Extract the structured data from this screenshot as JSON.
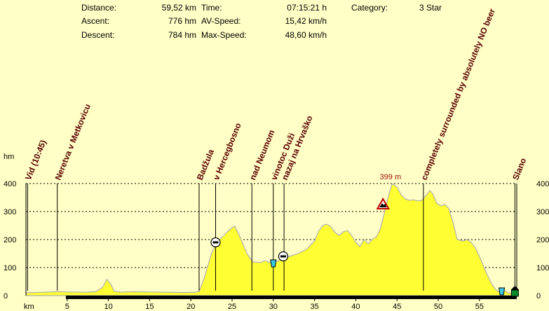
{
  "stats": {
    "distance_label": "Distance:",
    "distance_value": "59,52 km",
    "ascent_label": "Ascent:",
    "ascent_value": "776 hm",
    "descent_label": "Descent:",
    "descent_value": "784 hm",
    "time_label": "Time:",
    "time_value": "07:15:21 h",
    "avspeed_label": "AV-Speed:",
    "avspeed_value": "15,42 km/h",
    "maxspeed_label": "Max-Speed:",
    "maxspeed_value": "48,60 km/h",
    "category_label": "Category:",
    "category_value": "3 Star"
  },
  "colors": {
    "background": "#ffffc6",
    "fill": "#ffff33",
    "outline": "#b0b0b0",
    "label": "#5a0000",
    "peak_label": "#a01010"
  },
  "chart_data": {
    "type": "area",
    "xlabel": "km",
    "ylabel": "hm",
    "xlim": [
      0,
      59.52
    ],
    "ylim": [
      0,
      400
    ],
    "xticks": [
      5,
      10,
      15,
      20,
      25,
      30,
      35,
      40,
      45,
      50,
      55
    ],
    "yticks": [
      0,
      100,
      200,
      300,
      400
    ],
    "grid": true,
    "peak_label": "399 m",
    "peak_x": 44.2,
    "profile": [
      [
        0,
        10
      ],
      [
        2,
        12
      ],
      [
        4,
        14
      ],
      [
        5,
        13
      ],
      [
        7,
        12
      ],
      [
        8.5,
        14
      ],
      [
        9.3,
        30
      ],
      [
        9.8,
        58
      ],
      [
        10.3,
        40
      ],
      [
        10.7,
        16
      ],
      [
        11.5,
        12
      ],
      [
        13,
        14
      ],
      [
        15,
        13
      ],
      [
        17,
        12
      ],
      [
        19,
        11
      ],
      [
        20.5,
        12
      ],
      [
        21,
        15
      ],
      [
        21.6,
        60
      ],
      [
        22,
        100
      ],
      [
        22.5,
        150
      ],
      [
        23,
        180
      ],
      [
        23.5,
        200
      ],
      [
        24,
        215
      ],
      [
        24.5,
        230
      ],
      [
        25,
        242
      ],
      [
        25.3,
        248
      ],
      [
        25.8,
        220
      ],
      [
        26.3,
        185
      ],
      [
        26.8,
        150
      ],
      [
        27.5,
        120
      ],
      [
        28.5,
        118
      ],
      [
        29,
        125
      ],
      [
        29.5,
        118
      ],
      [
        30.5,
        122
      ],
      [
        31,
        130
      ],
      [
        32,
        140
      ],
      [
        33,
        150
      ],
      [
        34,
        165
      ],
      [
        35,
        195
      ],
      [
        35.5,
        230
      ],
      [
        36,
        250
      ],
      [
        36.5,
        255
      ],
      [
        37,
        245
      ],
      [
        37.5,
        225
      ],
      [
        38,
        215
      ],
      [
        38.5,
        228
      ],
      [
        39,
        232
      ],
      [
        39.5,
        215
      ],
      [
        40,
        190
      ],
      [
        40.5,
        175
      ],
      [
        41,
        200
      ],
      [
        41.5,
        185
      ],
      [
        42,
        200
      ],
      [
        42.5,
        210
      ],
      [
        43,
        240
      ],
      [
        43.5,
        300
      ],
      [
        44,
        360
      ],
      [
        44.4,
        399
      ],
      [
        45,
        388
      ],
      [
        45.5,
        360
      ],
      [
        46,
        345
      ],
      [
        46.5,
        340
      ],
      [
        47,
        342
      ],
      [
        47.5,
        338
      ],
      [
        48,
        340
      ],
      [
        48.6,
        360
      ],
      [
        49,
        375
      ],
      [
        49.4,
        360
      ],
      [
        49.8,
        330
      ],
      [
        50.3,
        320
      ],
      [
        50.8,
        325
      ],
      [
        51.3,
        310
      ],
      [
        51.8,
        260
      ],
      [
        52.3,
        200
      ],
      [
        53,
        195
      ],
      [
        53.5,
        200
      ],
      [
        54,
        190
      ],
      [
        54.5,
        170
      ],
      [
        55,
        140
      ],
      [
        55.5,
        105
      ],
      [
        56,
        70
      ],
      [
        56.5,
        40
      ],
      [
        57,
        20
      ],
      [
        57.5,
        12
      ],
      [
        58,
        18
      ],
      [
        58.5,
        10
      ],
      [
        59.52,
        5
      ]
    ],
    "waypoints": [
      {
        "label": "Vid (10:45)",
        "x": 0.2
      },
      {
        "label": "Neretva v Metkovicu",
        "x": 3.8
      },
      {
        "label": "Badžula",
        "x": 21.0
      },
      {
        "label": "v Hercegbosno",
        "x": 23.0
      },
      {
        "label": "nad Neumom",
        "x": 27.4
      },
      {
        "label": "vinotoc Duži",
        "x": 30.0
      },
      {
        "label": "nazaj na Hrvaško",
        "x": 31.3
      },
      {
        "label": "completely surrounded by absolutely NO beer",
        "x": 48.2
      },
      {
        "label": "Slano",
        "x": 59.3
      }
    ],
    "markers": [
      {
        "type": "mountain-pass",
        "x": 23.0,
        "y": 190
      },
      {
        "type": "drink",
        "x": 30.0,
        "y": 115
      },
      {
        "type": "mountain-pass",
        "x": 31.2,
        "y": 140
      },
      {
        "type": "summit",
        "x": 43.3,
        "y": 325
      },
      {
        "type": "drink",
        "x": 57.7,
        "y": 15
      },
      {
        "type": "finish",
        "x": 59.3,
        "y": 15
      }
    ]
  }
}
